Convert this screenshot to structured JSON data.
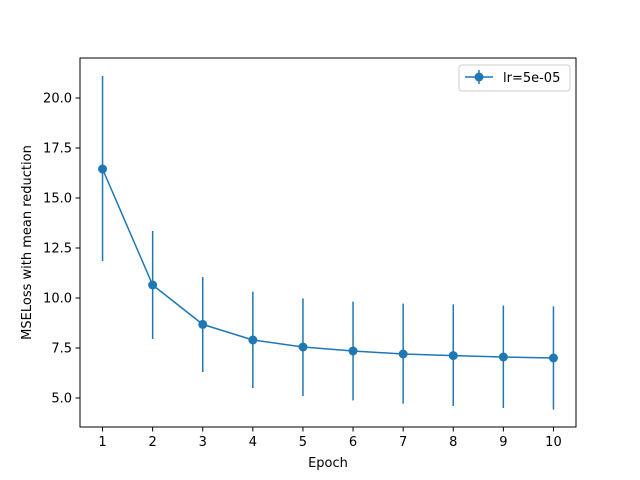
{
  "chart_data": {
    "type": "line",
    "title": "",
    "xlabel": "Epoch",
    "ylabel": "MSELoss with mean reduction",
    "x": [
      1,
      2,
      3,
      4,
      5,
      6,
      7,
      8,
      9,
      10
    ],
    "xticks": [
      "1",
      "2",
      "3",
      "4",
      "5",
      "6",
      "7",
      "8",
      "9",
      "10"
    ],
    "xlim": [
      0.55,
      10.45
    ],
    "ylim": [
      3.55,
      22.0
    ],
    "yticks": [
      5.0,
      7.5,
      10.0,
      12.5,
      15.0,
      17.5,
      20.0
    ],
    "ytick_labels": [
      "5.0",
      "7.5",
      "10.0",
      "12.5",
      "15.0",
      "17.5",
      "20.0"
    ],
    "grid": false,
    "legend_position": "top-right",
    "series": [
      {
        "name": "lr=5e-05",
        "color": "#1f77b4",
        "marker": "circle",
        "values": [
          16.45,
          10.65,
          8.68,
          7.9,
          7.55,
          7.35,
          7.2,
          7.12,
          7.05,
          7.0
        ],
        "error_low": [
          11.85,
          7.95,
          6.3,
          5.5,
          5.1,
          4.88,
          4.72,
          4.6,
          4.5,
          4.42
        ],
        "error_high": [
          21.1,
          13.35,
          11.05,
          10.32,
          9.98,
          9.82,
          9.72,
          9.68,
          9.62,
          9.58
        ]
      }
    ]
  }
}
